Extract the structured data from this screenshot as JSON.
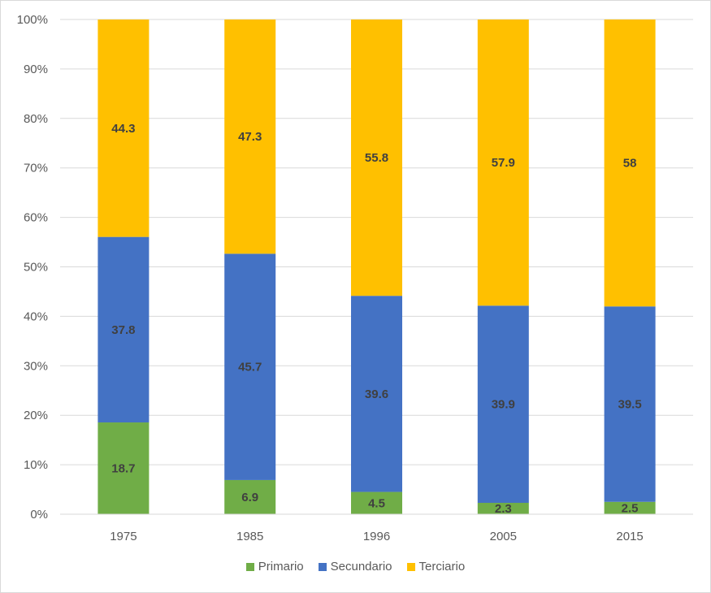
{
  "chart_data": {
    "type": "bar",
    "stacked": true,
    "percent_stacked": true,
    "categories": [
      "1975",
      "1985",
      "1996",
      "2005",
      "2015"
    ],
    "series": [
      {
        "name": "Primario",
        "values": [
          18.7,
          6.9,
          4.5,
          2.3,
          2.5
        ],
        "color": "#70ad47"
      },
      {
        "name": "Secundario",
        "values": [
          37.8,
          45.7,
          39.6,
          39.9,
          39.5
        ],
        "color": "#4472c4"
      },
      {
        "name": "Terciario",
        "values": [
          44.3,
          47.3,
          55.8,
          57.9,
          58
        ],
        "color": "#ffc000"
      }
    ],
    "y_ticks": [
      "0%",
      "10%",
      "20%",
      "30%",
      "40%",
      "50%",
      "60%",
      "70%",
      "80%",
      "90%",
      "100%"
    ],
    "ylim": [
      0,
      100
    ],
    "grid": true,
    "legend_position": "bottom"
  }
}
